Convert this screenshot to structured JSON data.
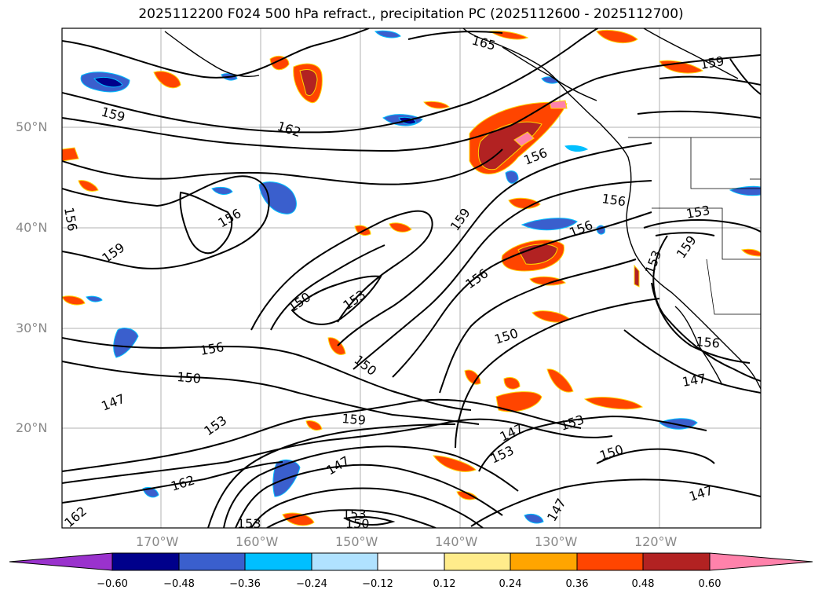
{
  "title": "2025112200 F024 500 hPa refract., precipitation PC (2025112600 - 2025112700)",
  "lat_labels": [
    "50°N",
    "40°N",
    "30°N",
    "20°N"
  ],
  "lon_labels": [
    "170°W",
    "160°W",
    "150°W",
    "140°W",
    "130°W",
    "120°W"
  ],
  "colorbar": {
    "ticks": [
      "−0.60",
      "−0.48",
      "−0.36",
      "−0.24",
      "−0.12",
      "0.12",
      "0.24",
      "0.36",
      "0.48",
      "0.60"
    ],
    "colors": [
      "#9a32cd",
      "#00008b",
      "#3a5fcd",
      "#00bfff",
      "#b0e2ff",
      "#ffffff",
      "#ffec8b",
      "#ffa500",
      "#ff4500",
      "#b22222",
      "#ff82ab"
    ]
  },
  "contour_labels": [
    "165",
    "159",
    "159",
    "162",
    "156",
    "156",
    "156",
    "159",
    "153",
    "156",
    "159",
    "156",
    "153",
    "159",
    "150",
    "153",
    "156",
    "150",
    "156",
    "150",
    "147",
    "153",
    "159",
    "147",
    "162",
    "162",
    "153",
    "150",
    "147",
    "153",
    "150",
    "147",
    "153",
    "147",
    "156",
    "147",
    "153",
    "150",
    "150"
  ]
}
